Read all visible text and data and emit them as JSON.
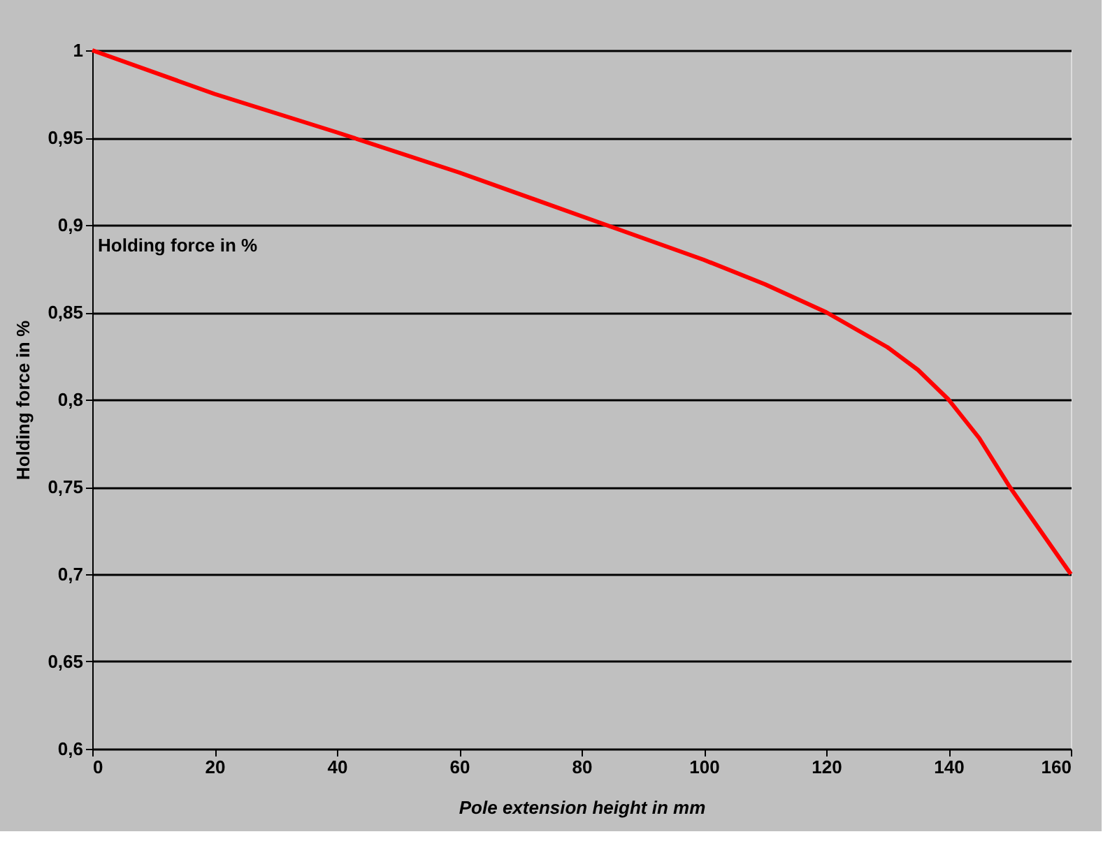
{
  "chart_data": {
    "type": "line",
    "xlabel": "Pole extension height in mm",
    "ylabel": "Holding force in %",
    "annotations": [
      "Holding force in %"
    ],
    "x": [
      0,
      20,
      40,
      60,
      80,
      100,
      110,
      120,
      130,
      135,
      140,
      145,
      150,
      155,
      160
    ],
    "series": [
      {
        "color": "#ff0000",
        "values": [
          1,
          0.975,
          0.953,
          0.93,
          0.905,
          0.88,
          0.866,
          0.85,
          0.83,
          0.817,
          0.8,
          0.778,
          0.75,
          0.725,
          0.7
        ]
      }
    ],
    "xlim": [
      0,
      160
    ],
    "xticks": [
      0,
      20,
      40,
      60,
      80,
      100,
      120,
      140,
      160
    ],
    "ylim": [
      0.6,
      1
    ],
    "yticks": [
      {
        "value": 0.6,
        "label": "0,6"
      },
      {
        "value": 0.65,
        "label": "0,65"
      },
      {
        "value": 0.7,
        "label": "0,7"
      },
      {
        "value": 0.75,
        "label": "0,75"
      },
      {
        "value": 0.8,
        "label": "0,8"
      },
      {
        "value": 0.85,
        "label": "0,85"
      },
      {
        "value": 0.9,
        "label": "0,9"
      },
      {
        "value": 0.95,
        "label": "0,95"
      },
      {
        "value": 1,
        "label": "1"
      }
    ],
    "grid": "y",
    "marker": "none",
    "line_style": "solid"
  }
}
